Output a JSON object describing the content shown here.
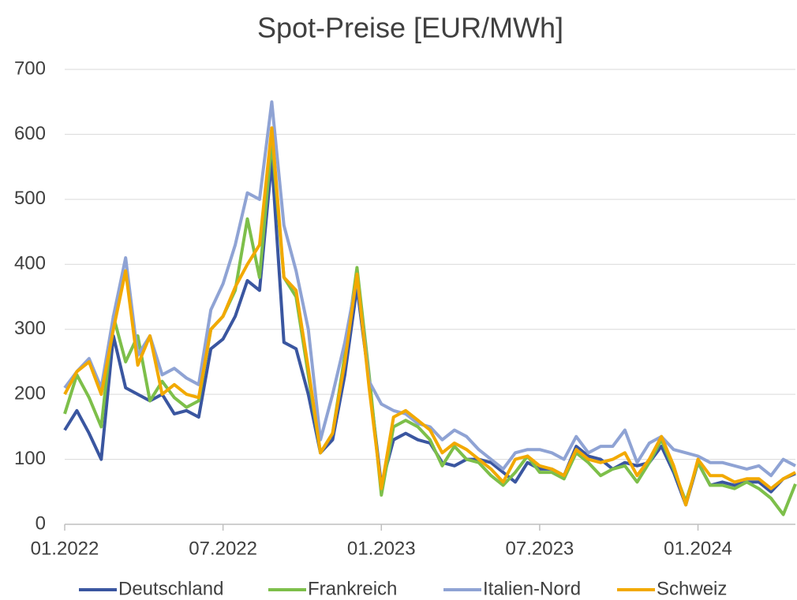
{
  "chart_data": {
    "type": "line",
    "title": "Spot-Preise [EUR/MWh]",
    "categories": [
      "01.2022",
      null,
      null,
      null,
      null,
      null,
      null,
      null,
      null,
      null,
      null,
      null,
      null,
      "07.2022",
      null,
      null,
      null,
      null,
      null,
      null,
      null,
      null,
      null,
      null,
      null,
      null,
      "01.2023",
      null,
      null,
      null,
      null,
      null,
      null,
      null,
      null,
      null,
      null,
      null,
      null,
      "07.2023",
      null,
      null,
      null,
      null,
      null,
      null,
      null,
      null,
      null,
      null,
      null,
      null,
      "01.2024",
      null,
      null,
      null,
      null,
      null,
      null,
      null,
      null
    ],
    "ylim": [
      0,
      700
    ],
    "yticks": [
      0,
      100,
      200,
      300,
      400,
      500,
      600,
      700
    ],
    "grid": true,
    "legend": "bottom",
    "series": [
      {
        "name": "Deutschland",
        "color": "#3a56a0",
        "values": [
          145,
          175,
          140,
          100,
          290,
          210,
          200,
          190,
          200,
          170,
          175,
          165,
          270,
          285,
          320,
          375,
          360,
          560,
          280,
          270,
          200,
          110,
          130,
          230,
          365,
          220,
          60,
          130,
          140,
          130,
          125,
          95,
          90,
          100,
          100,
          95,
          80,
          65,
          95,
          85,
          85,
          75,
          120,
          105,
          100,
          85,
          95,
          90,
          95,
          120,
          80,
          30,
          95,
          60,
          65,
          60,
          65,
          65,
          50,
          70,
          78
        ]
      },
      {
        "name": "Frankreich",
        "color": "#7dbf4a",
        "values": [
          170,
          230,
          195,
          150,
          320,
          250,
          290,
          190,
          220,
          195,
          180,
          190,
          300,
          320,
          360,
          470,
          380,
          590,
          380,
          350,
          230,
          110,
          140,
          260,
          395,
          230,
          45,
          150,
          160,
          150,
          130,
          90,
          120,
          100,
          95,
          75,
          60,
          80,
          105,
          80,
          80,
          70,
          110,
          95,
          75,
          85,
          90,
          65,
          95,
          130,
          85,
          35,
          95,
          60,
          60,
          55,
          65,
          55,
          40,
          15,
          62
        ]
      },
      {
        "name": "Italien-Nord",
        "color": "#8fa3d4",
        "values": [
          210,
          235,
          255,
          210,
          320,
          410,
          260,
          290,
          230,
          240,
          225,
          215,
          330,
          370,
          430,
          510,
          500,
          650,
          460,
          390,
          300,
          130,
          200,
          280,
          380,
          220,
          185,
          175,
          170,
          155,
          150,
          130,
          145,
          135,
          115,
          100,
          85,
          110,
          115,
          115,
          110,
          100,
          135,
          110,
          120,
          120,
          145,
          95,
          125,
          135,
          115,
          110,
          105,
          95,
          95,
          90,
          85,
          90,
          75,
          100,
          90
        ]
      },
      {
        "name": "Schweiz",
        "color": "#f2a900",
        "values": [
          200,
          235,
          250,
          200,
          300,
          390,
          245,
          290,
          200,
          215,
          200,
          195,
          300,
          320,
          365,
          400,
          430,
          610,
          380,
          360,
          240,
          110,
          140,
          250,
          385,
          210,
          55,
          165,
          175,
          160,
          145,
          110,
          125,
          115,
          100,
          85,
          65,
          100,
          105,
          90,
          85,
          75,
          115,
          100,
          95,
          100,
          110,
          75,
          100,
          135,
          90,
          30,
          100,
          75,
          75,
          65,
          70,
          70,
          55,
          70,
          80
        ]
      }
    ]
  }
}
